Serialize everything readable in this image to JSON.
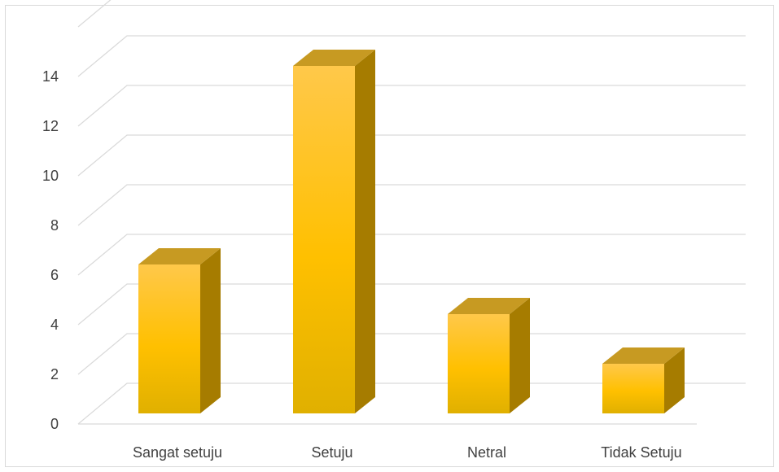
{
  "chart_data": {
    "type": "bar",
    "style": "3d-column",
    "categories": [
      "Sangat setuju",
      "Setuju",
      "Netral",
      "Tidak Setuju"
    ],
    "values": [
      6,
      14,
      4,
      2
    ],
    "ylim": [
      0,
      14
    ],
    "yticks": [
      0,
      2,
      4,
      6,
      8,
      10,
      12,
      14
    ],
    "title": "",
    "xlabel": "",
    "ylabel": "",
    "grid": true,
    "legend": "none",
    "colors": {
      "bar_front_top": "#ffc84a",
      "bar_front_mid": "#ffc000",
      "bar_front_bottom": "#e0b000",
      "bar_side": "#a67c00",
      "bar_top": "#c79a22",
      "gridline": "#d9d9d9",
      "text": "#404040"
    }
  }
}
